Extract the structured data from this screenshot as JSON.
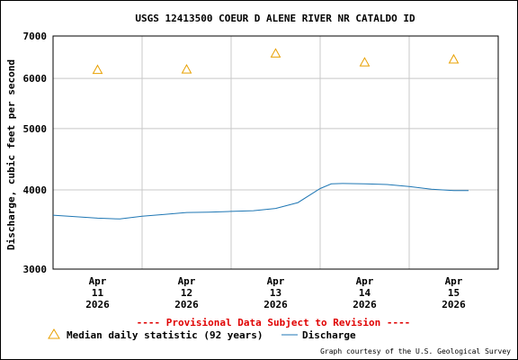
{
  "chart_data": {
    "type": "line",
    "title": "USGS 12413500 COEUR D ALENE RIVER NR CATALDO ID",
    "ylabel": "Discharge, cubic feet per second",
    "y_scale": "log",
    "ylim": [
      3000,
      7000
    ],
    "y_ticks": [
      {
        "value": 3000,
        "label": "3000"
      },
      {
        "value": 4000,
        "label": "4000"
      },
      {
        "value": 5000,
        "label": "5000"
      },
      {
        "value": 6000,
        "label": "6000"
      },
      {
        "value": 7000,
        "label": "7000"
      }
    ],
    "xlim": [
      "2026-04-10T12:00",
      "2026-04-15T12:00"
    ],
    "x_ticks": [
      {
        "date": "2026-04-11",
        "month": "Apr",
        "day": "11",
        "year": "2026"
      },
      {
        "date": "2026-04-12",
        "month": "Apr",
        "day": "12",
        "year": "2026"
      },
      {
        "date": "2026-04-13",
        "month": "Apr",
        "day": "13",
        "year": "2026"
      },
      {
        "date": "2026-04-14",
        "month": "Apr",
        "day": "14",
        "year": "2026"
      },
      {
        "date": "2026-04-15",
        "month": "Apr",
        "day": "15",
        "year": "2026"
      }
    ],
    "grid": true,
    "series": [
      {
        "name": "Discharge",
        "color": "#1f77b4",
        "points": [
          {
            "x": "2026-04-10T12:00",
            "y": 3650
          },
          {
            "x": "2026-04-10T18:00",
            "y": 3630
          },
          {
            "x": "2026-04-11T00:00",
            "y": 3610
          },
          {
            "x": "2026-04-11T06:00",
            "y": 3600
          },
          {
            "x": "2026-04-11T12:00",
            "y": 3635
          },
          {
            "x": "2026-04-11T18:00",
            "y": 3660
          },
          {
            "x": "2026-04-12T00:00",
            "y": 3685
          },
          {
            "x": "2026-04-12T06:00",
            "y": 3690
          },
          {
            "x": "2026-04-12T12:00",
            "y": 3700
          },
          {
            "x": "2026-04-12T18:00",
            "y": 3710
          },
          {
            "x": "2026-04-13T00:00",
            "y": 3740
          },
          {
            "x": "2026-04-13T06:00",
            "y": 3820
          },
          {
            "x": "2026-04-13T12:00",
            "y": 4020
          },
          {
            "x": "2026-04-13T15:00",
            "y": 4090
          },
          {
            "x": "2026-04-13T18:00",
            "y": 4095
          },
          {
            "x": "2026-04-14T00:00",
            "y": 4090
          },
          {
            "x": "2026-04-14T06:00",
            "y": 4080
          },
          {
            "x": "2026-04-14T12:00",
            "y": 4050
          },
          {
            "x": "2026-04-14T18:00",
            "y": 4010
          },
          {
            "x": "2026-04-15T00:00",
            "y": 3990
          },
          {
            "x": "2026-04-15T04:00",
            "y": 3990
          }
        ]
      },
      {
        "name": "Median daily statistic (92 years)",
        "color": "#e8a000",
        "marker": "triangle",
        "points": [
          {
            "x": "2026-04-11T00:00",
            "y": 6190
          },
          {
            "x": "2026-04-12T00:00",
            "y": 6200
          },
          {
            "x": "2026-04-13T00:00",
            "y": 6570
          },
          {
            "x": "2026-04-14T00:00",
            "y": 6360
          },
          {
            "x": "2026-04-15T00:00",
            "y": 6430
          }
        ]
      }
    ],
    "annotations": {
      "provisional": "---- Provisional Data Subject to Revision ----",
      "courtesy": "Graph courtesy of the U.S. Geological Survey"
    },
    "legend": {
      "placement": "bottom",
      "median_label": "Median daily statistic (92 years)",
      "discharge_label": "Discharge"
    }
  }
}
